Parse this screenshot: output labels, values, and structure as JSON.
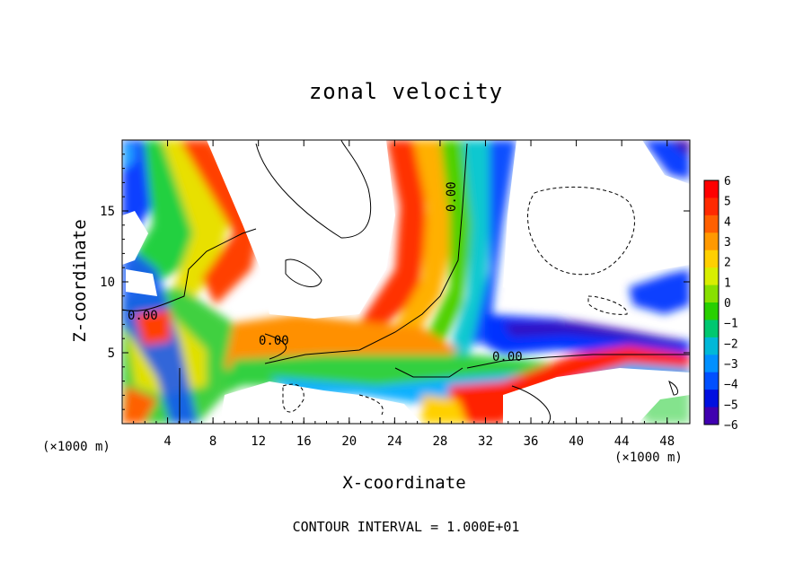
{
  "chart_data": {
    "type": "heatmap",
    "title": "zonal velocity",
    "xlabel": "X-coordinate",
    "ylabel": "Z-coordinate",
    "x_unit": "(×1000 m)",
    "x_ticks": [
      4,
      8,
      12,
      16,
      20,
      24,
      28,
      32,
      36,
      40,
      44,
      48
    ],
    "y_ticks": [
      5,
      10,
      15
    ],
    "xlim": [
      0,
      50
    ],
    "ylim": [
      0,
      20
    ],
    "colorbar": {
      "levels": [
        6,
        5,
        4,
        3,
        2,
        1,
        0,
        -1,
        -2,
        -3,
        -4,
        -5,
        -6
      ],
      "labels": [
        "6",
        "5",
        "4",
        "3",
        "2",
        "1",
        "0",
        "−1",
        "−2",
        "−3",
        "−4",
        "−5",
        "−6"
      ],
      "colors": [
        "#ff0000",
        "#ff2a00",
        "#ff6000",
        "#ff9900",
        "#ffd000",
        "#d8ee00",
        "#88e000",
        "#28d000",
        "#00c870",
        "#00b8d8",
        "#0090ff",
        "#0050ff",
        "#0010e0",
        "#4000b0"
      ]
    },
    "contour_labels": [
      "0.00",
      "0.00",
      "0.00",
      "0.00"
    ],
    "footer": "CONTOUR INTERVAL = 1.000E+01"
  }
}
